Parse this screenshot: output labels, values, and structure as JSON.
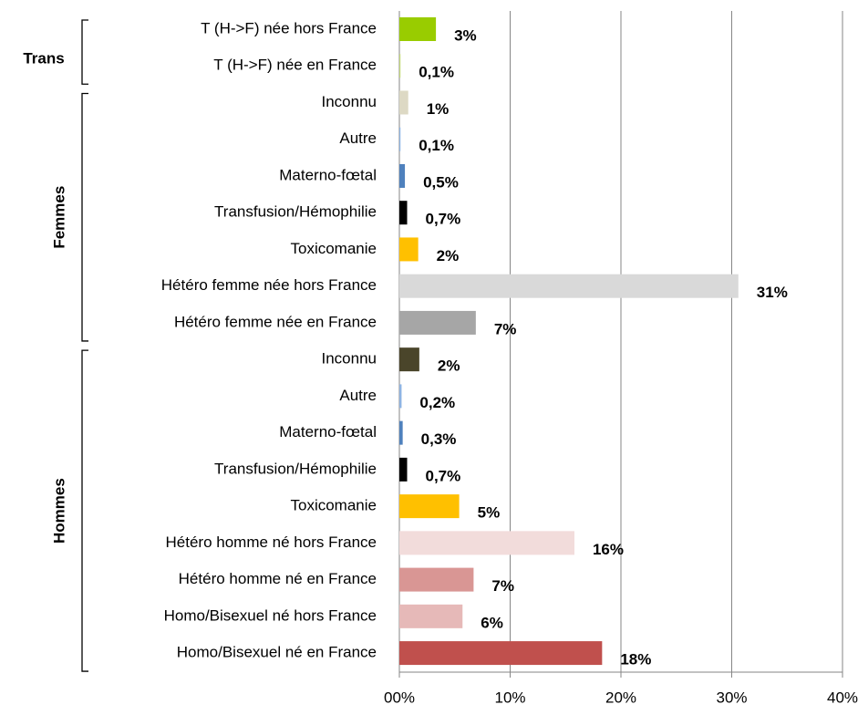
{
  "chart_data": {
    "type": "bar",
    "groups": [
      {
        "label": "Trans",
        "categories": [
          "T (H->F) née hors France",
          "T (H->F) née en France"
        ],
        "values": [
          3.3,
          0.1
        ],
        "value_labels": [
          "3%",
          "0,1%"
        ],
        "colors": [
          "#99cc00",
          "#c5d97a"
        ]
      },
      {
        "label": "Femmes",
        "categories": [
          "Inconnu",
          "Autre",
          "Materno-fœtal",
          "Transfusion/Hémophilie",
          "Toxicomanie",
          "Hétéro femme née hors France",
          "Hétéro femme née en France"
        ],
        "values": [
          0.8,
          0.1,
          0.5,
          0.7,
          1.7,
          30.6,
          6.9
        ],
        "value_labels": [
          "1%",
          "0,1%",
          "0,5%",
          "0,7%",
          "2%",
          "31%",
          "7%"
        ],
        "colors": [
          "#ddd9c4",
          "#8eb4e3",
          "#4f81bd",
          "#000000",
          "#ffc000",
          "#d9d9d9",
          "#a6a6a6"
        ]
      },
      {
        "label": "Hommes",
        "categories": [
          "Inconnu",
          "Autre",
          "Materno-fœtal",
          "Transfusion/Hémophilie",
          "Toxicomanie",
          "Hétéro homme né hors France",
          "Hétéro homme né en France",
          "Homo/Bisexuel né hors France",
          "Homo/Bisexuel né en France"
        ],
        "values": [
          1.8,
          0.2,
          0.3,
          0.7,
          5.4,
          15.8,
          6.7,
          5.7,
          18.3
        ],
        "value_labels": [
          "2%",
          "0,2%",
          "0,3%",
          "0,7%",
          "5%",
          "16%",
          "7%",
          "6%",
          "18%"
        ],
        "colors": [
          "#4a452a",
          "#8eb4e3",
          "#4f81bd",
          "#000000",
          "#ffc000",
          "#f2dcdb",
          "#d99694",
          "#e6b9b8",
          "#c0504d"
        ]
      }
    ],
    "xlim": [
      0,
      40
    ],
    "xticks": [
      {
        "value": 0,
        "label": "00%"
      },
      {
        "value": 10,
        "label": "10%"
      },
      {
        "value": 20,
        "label": "20%"
      },
      {
        "value": 30,
        "label": "30%"
      },
      {
        "value": 40,
        "label": "40%"
      }
    ],
    "grid": true
  }
}
